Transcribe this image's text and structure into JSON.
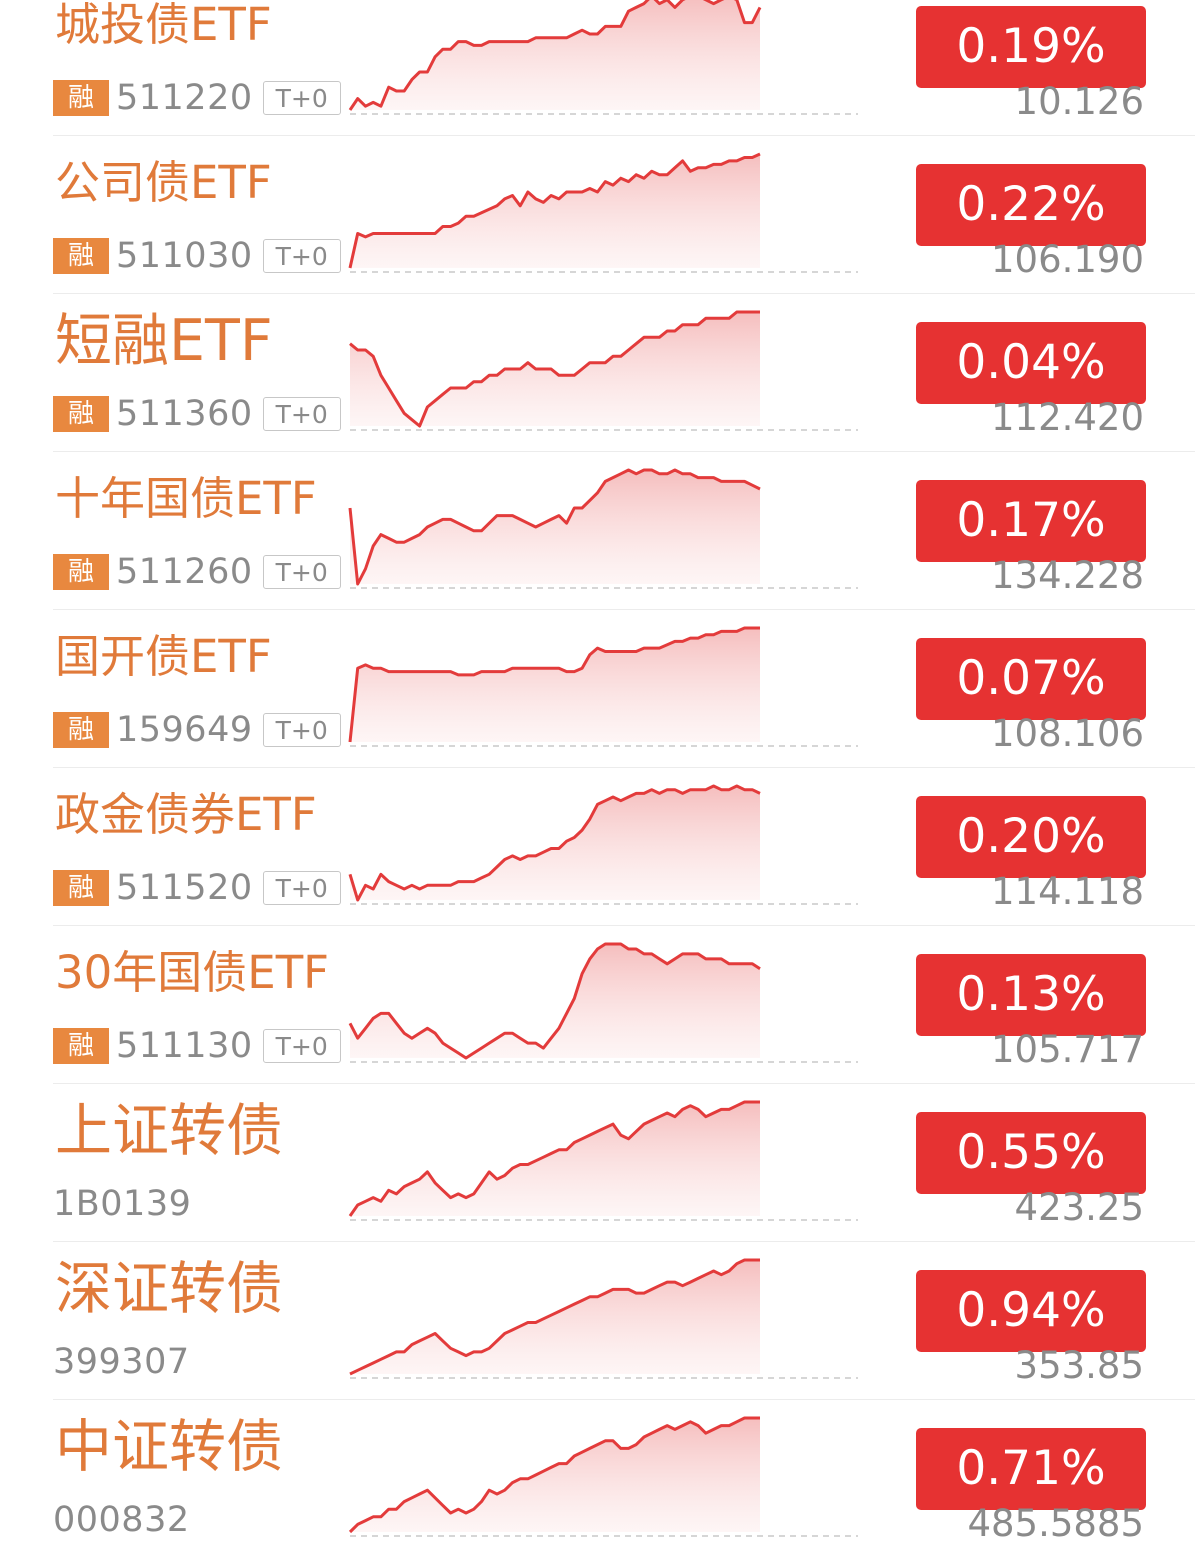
{
  "colors": {
    "accent_orange": "#e07a3a",
    "badge_orange": "#e8883f",
    "up_red": "#e63232",
    "line_red": "#e33b3b",
    "muted_gray": "#8a8a8a"
  },
  "rong_label": "融",
  "t0_label": "T+0",
  "items": [
    {
      "name": "城投债ETF",
      "code": "511220",
      "rong": true,
      "t0": true,
      "pct": "0.19%",
      "price": "10.126",
      "trend": [
        2,
        5,
        3,
        4,
        3,
        8,
        7,
        7,
        10,
        12,
        12,
        16,
        18,
        18,
        20,
        20,
        19,
        19,
        20,
        20,
        20,
        20,
        20,
        20,
        21,
        21,
        21,
        21,
        21,
        22,
        23,
        22,
        22,
        24,
        24,
        24,
        28,
        29,
        30,
        32,
        30,
        31,
        29,
        31,
        32,
        32,
        31,
        30,
        31,
        32,
        31,
        25,
        25,
        29
      ]
    },
    {
      "name": "公司债ETF",
      "code": "511030",
      "rong": true,
      "t0": true,
      "pct": "0.22%",
      "price": "106.190",
      "trend": [
        0,
        10,
        9,
        10,
        10,
        10,
        10,
        10,
        10,
        10,
        10,
        10,
        12,
        12,
        13,
        15,
        15,
        16,
        17,
        18,
        20,
        21,
        18,
        22,
        20,
        19,
        21,
        20,
        22,
        22,
        22,
        23,
        22,
        25,
        24,
        26,
        25,
        27,
        26,
        28,
        27,
        27,
        29,
        31,
        28,
        29,
        29,
        30,
        30,
        31,
        31,
        32,
        32,
        33
      ]
    },
    {
      "name": "短融ETF",
      "code": "511360",
      "rong": true,
      "t0": true,
      "pct": "0.04%",
      "price": "112.420",
      "trend": [
        27,
        26,
        26,
        25,
        22,
        20,
        18,
        16,
        15,
        14,
        17,
        18,
        19,
        20,
        20,
        20,
        21,
        21,
        22,
        22,
        23,
        23,
        23,
        24,
        23,
        23,
        23,
        22,
        22,
        22,
        23,
        24,
        24,
        24,
        25,
        25,
        26,
        27,
        28,
        28,
        28,
        29,
        29,
        30,
        30,
        30,
        31,
        31,
        31,
        31,
        32,
        32,
        32,
        32
      ]
    },
    {
      "name": "十年国债ETF",
      "code": "511260",
      "rong": true,
      "t0": true,
      "pct": "0.17%",
      "price": "134.228",
      "trend": [
        20,
        0,
        4,
        10,
        13,
        12,
        11,
        11,
        12,
        13,
        15,
        16,
        17,
        17,
        16,
        15,
        14,
        14,
        16,
        18,
        18,
        18,
        17,
        16,
        15,
        16,
        17,
        18,
        16,
        20,
        20,
        22,
        24,
        27,
        28,
        29,
        30,
        29,
        30,
        30,
        29,
        29,
        30,
        29,
        29,
        28,
        28,
        28,
        27,
        27,
        27,
        27,
        26,
        25
      ]
    },
    {
      "name": "国开债ETF",
      "code": "159649",
      "rong": true,
      "t0": true,
      "pct": "0.07%",
      "price": "108.106",
      "trend": [
        0,
        22,
        23,
        22,
        22,
        21,
        21,
        21,
        21,
        21,
        21,
        21,
        21,
        21,
        20,
        20,
        20,
        21,
        21,
        21,
        21,
        22,
        22,
        22,
        22,
        22,
        22,
        22,
        21,
        21,
        22,
        26,
        28,
        27,
        27,
        27,
        27,
        27,
        28,
        28,
        28,
        29,
        30,
        30,
        31,
        31,
        32,
        32,
        33,
        33,
        33,
        34,
        34,
        34
      ]
    },
    {
      "name": "政金债券ETF",
      "code": "511520",
      "rong": true,
      "t0": true,
      "pct": "0.20%",
      "price": "114.118",
      "trend": [
        8,
        1,
        5,
        4,
        8,
        6,
        5,
        4,
        5,
        4,
        5,
        5,
        5,
        5,
        6,
        6,
        6,
        7,
        8,
        10,
        12,
        13,
        12,
        13,
        13,
        14,
        15,
        15,
        17,
        18,
        20,
        23,
        27,
        28,
        29,
        28,
        29,
        30,
        30,
        31,
        30,
        31,
        31,
        30,
        31,
        31,
        31,
        32,
        31,
        31,
        32,
        31,
        31,
        30
      ]
    },
    {
      "name": "30年国债ETF",
      "code": "511130",
      "rong": true,
      "t0": true,
      "pct": "0.13%",
      "price": "105.717",
      "trend": [
        10,
        7,
        9,
        11,
        12,
        12,
        10,
        8,
        7,
        8,
        9,
        8,
        6,
        5,
        4,
        3,
        4,
        5,
        6,
        7,
        8,
        8,
        7,
        6,
        6,
        5,
        7,
        9,
        12,
        15,
        20,
        23,
        25,
        26,
        26,
        26,
        25,
        25,
        24,
        24,
        23,
        22,
        23,
        24,
        24,
        24,
        23,
        23,
        23,
        22,
        22,
        22,
        22,
        21
      ]
    },
    {
      "name": "上证转债",
      "code": "1B0139",
      "rong": false,
      "t0": false,
      "pct": "0.55%",
      "price": "423.25",
      "trend": [
        2,
        5,
        6,
        7,
        6,
        9,
        8,
        10,
        11,
        12,
        14,
        11,
        9,
        7,
        8,
        7,
        8,
        11,
        14,
        12,
        13,
        15,
        16,
        16,
        17,
        18,
        19,
        20,
        20,
        22,
        23,
        24,
        25,
        26,
        27,
        24,
        23,
        25,
        27,
        28,
        29,
        30,
        29,
        31,
        32,
        31,
        29,
        30,
        31,
        31,
        32,
        33,
        33,
        33
      ]
    },
    {
      "name": "深证转债",
      "code": "399307",
      "rong": false,
      "t0": false,
      "pct": "0.94%",
      "price": "353.85",
      "trend": [
        3,
        4,
        5,
        6,
        7,
        8,
        9,
        9,
        11,
        12,
        13,
        14,
        12,
        10,
        9,
        8,
        9,
        9,
        10,
        12,
        14,
        15,
        16,
        17,
        17,
        18,
        19,
        20,
        21,
        22,
        23,
        24,
        24,
        25,
        26,
        26,
        26,
        25,
        25,
        26,
        27,
        28,
        28,
        27,
        28,
        29,
        30,
        31,
        30,
        31,
        33,
        34,
        34,
        34
      ]
    },
    {
      "name": "中证转债",
      "code": "000832",
      "rong": false,
      "t0": false,
      "pct": "0.71%",
      "price": "485.5885",
      "trend": [
        2,
        4,
        5,
        6,
        6,
        8,
        8,
        10,
        11,
        12,
        13,
        11,
        9,
        7,
        8,
        7,
        8,
        10,
        13,
        12,
        13,
        15,
        16,
        16,
        17,
        18,
        19,
        20,
        20,
        22,
        23,
        24,
        25,
        26,
        26,
        24,
        24,
        25,
        27,
        28,
        29,
        30,
        29,
        30,
        31,
        30,
        28,
        29,
        30,
        30,
        31,
        32,
        32,
        32
      ]
    }
  ]
}
